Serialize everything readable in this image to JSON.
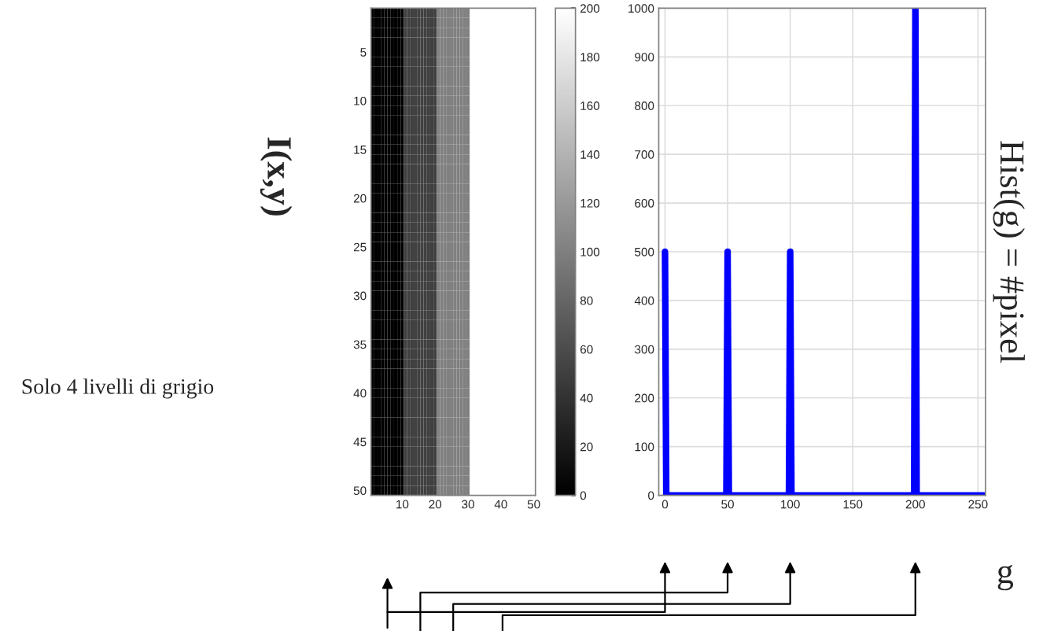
{
  "chart_data": [
    {
      "type": "heatmap",
      "ylabel": "I(x,y)",
      "annotations": [
        "Solo 4 livelli di grigio"
      ],
      "categories": [
        null,
        null,
        null,
        null,
        null,
        null,
        null,
        null,
        null,
        "10",
        null,
        null,
        null,
        null,
        null,
        null,
        null,
        null,
        null,
        "20",
        null,
        null,
        null,
        null,
        null,
        null,
        null,
        null,
        null,
        "30",
        null,
        null,
        null,
        null,
        null,
        null,
        null,
        null,
        null,
        "40",
        null,
        null,
        null,
        null,
        null,
        null,
        null,
        null,
        null,
        "50"
      ],
      "y_categories": [
        null,
        null,
        null,
        null,
        "5",
        null,
        null,
        null,
        null,
        "10",
        null,
        null,
        null,
        null,
        "15",
        null,
        null,
        null,
        null,
        "20",
        null,
        null,
        null,
        null,
        "25",
        null,
        null,
        null,
        null,
        "30",
        null,
        null,
        null,
        null,
        "35",
        null,
        null,
        null,
        null,
        "40",
        null,
        null,
        null,
        null,
        "45",
        null,
        null,
        null,
        null,
        "50"
      ],
      "clim": [
        0,
        200
      ],
      "cticks": [
        0,
        20,
        40,
        60,
        80,
        100,
        120,
        140,
        160,
        180,
        200
      ],
      "cells": [
        [
          0,
          0,
          0,
          0,
          0,
          0,
          0,
          0,
          0,
          0,
          50,
          50,
          50,
          50,
          50,
          50,
          50,
          50,
          50,
          50,
          100,
          100,
          100,
          100,
          100,
          100,
          100,
          100,
          100,
          100,
          200,
          200,
          200,
          200,
          200,
          200,
          200,
          200,
          200,
          200,
          200,
          200,
          200,
          200,
          200,
          200,
          200,
          200,
          200,
          200
        ],
        [
          0,
          0,
          0,
          0,
          0,
          0,
          0,
          0,
          0,
          0,
          50,
          50,
          50,
          50,
          50,
          50,
          50,
          50,
          50,
          50,
          100,
          100,
          100,
          100,
          100,
          100,
          100,
          100,
          100,
          100,
          200,
          200,
          200,
          200,
          200,
          200,
          200,
          200,
          200,
          200,
          200,
          200,
          200,
          200,
          200,
          200,
          200,
          200,
          200,
          200
        ],
        [
          0,
          0,
          0,
          0,
          0,
          0,
          0,
          0,
          0,
          0,
          50,
          50,
          50,
          50,
          50,
          50,
          50,
          50,
          50,
          50,
          100,
          100,
          100,
          100,
          100,
          100,
          100,
          100,
          100,
          100,
          200,
          200,
          200,
          200,
          200,
          200,
          200,
          200,
          200,
          200,
          200,
          200,
          200,
          200,
          200,
          200,
          200,
          200,
          200,
          200
        ],
        [
          0,
          0,
          0,
          0,
          0,
          0,
          0,
          0,
          0,
          0,
          50,
          50,
          50,
          50,
          50,
          50,
          50,
          50,
          50,
          50,
          100,
          100,
          100,
          100,
          100,
          100,
          100,
          100,
          100,
          100,
          200,
          200,
          200,
          200,
          200,
          200,
          200,
          200,
          200,
          200,
          200,
          200,
          200,
          200,
          200,
          200,
          200,
          200,
          200,
          200
        ],
        [
          0,
          0,
          0,
          0,
          0,
          0,
          0,
          0,
          0,
          0,
          50,
          50,
          50,
          50,
          50,
          50,
          50,
          50,
          50,
          50,
          100,
          100,
          100,
          100,
          100,
          100,
          100,
          100,
          100,
          100,
          200,
          200,
          200,
          200,
          200,
          200,
          200,
          200,
          200,
          200,
          200,
          200,
          200,
          200,
          200,
          200,
          200,
          200,
          200,
          200
        ],
        [
          0,
          0,
          0,
          0,
          0,
          0,
          0,
          0,
          0,
          0,
          50,
          50,
          50,
          50,
          50,
          50,
          50,
          50,
          50,
          50,
          100,
          100,
          100,
          100,
          100,
          100,
          100,
          100,
          100,
          100,
          200,
          200,
          200,
          200,
          200,
          200,
          200,
          200,
          200,
          200,
          200,
          200,
          200,
          200,
          200,
          200,
          200,
          200,
          200,
          200
        ],
        [
          0,
          0,
          0,
          0,
          0,
          0,
          0,
          0,
          0,
          0,
          50,
          50,
          50,
          50,
          50,
          50,
          50,
          50,
          50,
          50,
          100,
          100,
          100,
          100,
          100,
          100,
          100,
          100,
          100,
          100,
          200,
          200,
          200,
          200,
          200,
          200,
          200,
          200,
          200,
          200,
          200,
          200,
          200,
          200,
          200,
          200,
          200,
          200,
          200,
          200
        ],
        [
          0,
          0,
          0,
          0,
          0,
          0,
          0,
          0,
          0,
          0,
          50,
          50,
          50,
          50,
          50,
          50,
          50,
          50,
          50,
          50,
          100,
          100,
          100,
          100,
          100,
          100,
          100,
          100,
          100,
          100,
          200,
          200,
          200,
          200,
          200,
          200,
          200,
          200,
          200,
          200,
          200,
          200,
          200,
          200,
          200,
          200,
          200,
          200,
          200,
          200
        ],
        [
          0,
          0,
          0,
          0,
          0,
          0,
          0,
          0,
          0,
          0,
          50,
          50,
          50,
          50,
          50,
          50,
          50,
          50,
          50,
          50,
          100,
          100,
          100,
          100,
          100,
          100,
          100,
          100,
          100,
          100,
          200,
          200,
          200,
          200,
          200,
          200,
          200,
          200,
          200,
          200,
          200,
          200,
          200,
          200,
          200,
          200,
          200,
          200,
          200,
          200
        ],
        [
          0,
          0,
          0,
          0,
          0,
          0,
          0,
          0,
          0,
          0,
          50,
          50,
          50,
          50,
          50,
          50,
          50,
          50,
          50,
          50,
          100,
          100,
          100,
          100,
          100,
          100,
          100,
          100,
          100,
          100,
          200,
          200,
          200,
          200,
          200,
          200,
          200,
          200,
          200,
          200,
          200,
          200,
          200,
          200,
          200,
          200,
          200,
          200,
          200,
          200
        ],
        [
          0,
          0,
          0,
          0,
          0,
          0,
          0,
          0,
          0,
          0,
          50,
          50,
          50,
          50,
          50,
          50,
          50,
          50,
          50,
          50,
          100,
          100,
          100,
          100,
          100,
          100,
          100,
          100,
          100,
          100,
          200,
          200,
          200,
          200,
          200,
          200,
          200,
          200,
          200,
          200,
          200,
          200,
          200,
          200,
          200,
          200,
          200,
          200,
          200,
          200
        ],
        [
          0,
          0,
          0,
          0,
          0,
          0,
          0,
          0,
          0,
          0,
          50,
          50,
          50,
          50,
          50,
          50,
          50,
          50,
          50,
          50,
          100,
          100,
          100,
          100,
          100,
          100,
          100,
          100,
          100,
          100,
          200,
          200,
          200,
          200,
          200,
          200,
          200,
          200,
          200,
          200,
          200,
          200,
          200,
          200,
          200,
          200,
          200,
          200,
          200,
          200
        ],
        [
          0,
          0,
          0,
          0,
          0,
          0,
          0,
          0,
          0,
          0,
          50,
          50,
          50,
          50,
          50,
          50,
          50,
          50,
          50,
          50,
          100,
          100,
          100,
          100,
          100,
          100,
          100,
          100,
          100,
          100,
          200,
          200,
          200,
          200,
          200,
          200,
          200,
          200,
          200,
          200,
          200,
          200,
          200,
          200,
          200,
          200,
          200,
          200,
          200,
          200
        ],
        [
          0,
          0,
          0,
          0,
          0,
          0,
          0,
          0,
          0,
          0,
          50,
          50,
          50,
          50,
          50,
          50,
          50,
          50,
          50,
          50,
          100,
          100,
          100,
          100,
          100,
          100,
          100,
          100,
          100,
          100,
          200,
          200,
          200,
          200,
          200,
          200,
          200,
          200,
          200,
          200,
          200,
          200,
          200,
          200,
          200,
          200,
          200,
          200,
          200,
          200
        ],
        [
          0,
          0,
          0,
          0,
          0,
          0,
          0,
          0,
          0,
          0,
          50,
          50,
          50,
          50,
          50,
          50,
          50,
          50,
          50,
          50,
          100,
          100,
          100,
          100,
          100,
          100,
          100,
          100,
          100,
          100,
          200,
          200,
          200,
          200,
          200,
          200,
          200,
          200,
          200,
          200,
          200,
          200,
          200,
          200,
          200,
          200,
          200,
          200,
          200,
          200
        ],
        [
          0,
          0,
          0,
          0,
          0,
          0,
          0,
          0,
          0,
          0,
          50,
          50,
          50,
          50,
          50,
          50,
          50,
          50,
          50,
          50,
          100,
          100,
          100,
          100,
          100,
          100,
          100,
          100,
          100,
          100,
          200,
          200,
          200,
          200,
          200,
          200,
          200,
          200,
          200,
          200,
          200,
          200,
          200,
          200,
          200,
          200,
          200,
          200,
          200,
          200
        ],
        [
          0,
          0,
          0,
          0,
          0,
          0,
          0,
          0,
          0,
          0,
          50,
          50,
          50,
          50,
          50,
          50,
          50,
          50,
          50,
          50,
          100,
          100,
          100,
          100,
          100,
          100,
          100,
          100,
          100,
          100,
          200,
          200,
          200,
          200,
          200,
          200,
          200,
          200,
          200,
          200,
          200,
          200,
          200,
          200,
          200,
          200,
          200,
          200,
          200,
          200
        ],
        [
          0,
          0,
          0,
          0,
          0,
          0,
          0,
          0,
          0,
          0,
          50,
          50,
          50,
          50,
          50,
          50,
          50,
          50,
          50,
          50,
          100,
          100,
          100,
          100,
          100,
          100,
          100,
          100,
          100,
          100,
          200,
          200,
          200,
          200,
          200,
          200,
          200,
          200,
          200,
          200,
          200,
          200,
          200,
          200,
          200,
          200,
          200,
          200,
          200,
          200
        ],
        [
          0,
          0,
          0,
          0,
          0,
          0,
          0,
          0,
          0,
          0,
          50,
          50,
          50,
          50,
          50,
          50,
          50,
          50,
          50,
          50,
          100,
          100,
          100,
          100,
          100,
          100,
          100,
          100,
          100,
          100,
          200,
          200,
          200,
          200,
          200,
          200,
          200,
          200,
          200,
          200,
          200,
          200,
          200,
          200,
          200,
          200,
          200,
          200,
          200,
          200
        ],
        [
          0,
          0,
          0,
          0,
          0,
          0,
          0,
          0,
          0,
          0,
          50,
          50,
          50,
          50,
          50,
          50,
          50,
          50,
          50,
          50,
          100,
          100,
          100,
          100,
          100,
          100,
          100,
          100,
          100,
          100,
          200,
          200,
          200,
          200,
          200,
          200,
          200,
          200,
          200,
          200,
          200,
          200,
          200,
          200,
          200,
          200,
          200,
          200,
          200,
          200
        ],
        [
          0,
          0,
          0,
          0,
          0,
          0,
          0,
          0,
          0,
          0,
          50,
          50,
          50,
          50,
          50,
          50,
          50,
          50,
          50,
          50,
          100,
          100,
          100,
          100,
          100,
          100,
          100,
          100,
          100,
          100,
          200,
          200,
          200,
          200,
          200,
          200,
          200,
          200,
          200,
          200,
          200,
          200,
          200,
          200,
          200,
          200,
          200,
          200,
          200,
          200
        ],
        [
          0,
          0,
          0,
          0,
          0,
          0,
          0,
          0,
          0,
          0,
          50,
          50,
          50,
          50,
          50,
          50,
          50,
          50,
          50,
          50,
          100,
          100,
          100,
          100,
          100,
          100,
          100,
          100,
          100,
          100,
          200,
          200,
          200,
          200,
          200,
          200,
          200,
          200,
          200,
          200,
          200,
          200,
          200,
          200,
          200,
          200,
          200,
          200,
          200,
          200
        ],
        [
          0,
          0,
          0,
          0,
          0,
          0,
          0,
          0,
          0,
          0,
          50,
          50,
          50,
          50,
          50,
          50,
          50,
          50,
          50,
          50,
          100,
          100,
          100,
          100,
          100,
          100,
          100,
          100,
          100,
          100,
          200,
          200,
          200,
          200,
          200,
          200,
          200,
          200,
          200,
          200,
          200,
          200,
          200,
          200,
          200,
          200,
          200,
          200,
          200,
          200
        ],
        [
          0,
          0,
          0,
          0,
          0,
          0,
          0,
          0,
          0,
          0,
          50,
          50,
          50,
          50,
          50,
          50,
          50,
          50,
          50,
          50,
          100,
          100,
          100,
          100,
          100,
          100,
          100,
          100,
          100,
          100,
          200,
          200,
          200,
          200,
          200,
          200,
          200,
          200,
          200,
          200,
          200,
          200,
          200,
          200,
          200,
          200,
          200,
          200,
          200,
          200
        ],
        [
          0,
          0,
          0,
          0,
          0,
          0,
          0,
          0,
          0,
          0,
          50,
          50,
          50,
          50,
          50,
          50,
          50,
          50,
          50,
          50,
          100,
          100,
          100,
          100,
          100,
          100,
          100,
          100,
          100,
          100,
          200,
          200,
          200,
          200,
          200,
          200,
          200,
          200,
          200,
          200,
          200,
          200,
          200,
          200,
          200,
          200,
          200,
          200,
          200,
          200
        ],
        [
          0,
          0,
          0,
          0,
          0,
          0,
          0,
          0,
          0,
          0,
          50,
          50,
          50,
          50,
          50,
          50,
          50,
          50,
          50,
          50,
          100,
          100,
          100,
          100,
          100,
          100,
          100,
          100,
          100,
          100,
          200,
          200,
          200,
          200,
          200,
          200,
          200,
          200,
          200,
          200,
          200,
          200,
          200,
          200,
          200,
          200,
          200,
          200,
          200,
          200
        ],
        [
          0,
          0,
          0,
          0,
          0,
          0,
          0,
          0,
          0,
          0,
          50,
          50,
          50,
          50,
          50,
          50,
          50,
          50,
          50,
          50,
          100,
          100,
          100,
          100,
          100,
          100,
          100,
          100,
          100,
          100,
          200,
          200,
          200,
          200,
          200,
          200,
          200,
          200,
          200,
          200,
          200,
          200,
          200,
          200,
          200,
          200,
          200,
          200,
          200,
          200
        ],
        [
          0,
          0,
          0,
          0,
          0,
          0,
          0,
          0,
          0,
          0,
          50,
          50,
          50,
          50,
          50,
          50,
          50,
          50,
          50,
          50,
          100,
          100,
          100,
          100,
          100,
          100,
          100,
          100,
          100,
          100,
          200,
          200,
          200,
          200,
          200,
          200,
          200,
          200,
          200,
          200,
          200,
          200,
          200,
          200,
          200,
          200,
          200,
          200,
          200,
          200
        ],
        [
          0,
          0,
          0,
          0,
          0,
          0,
          0,
          0,
          0,
          0,
          50,
          50,
          50,
          50,
          50,
          50,
          50,
          50,
          50,
          50,
          100,
          100,
          100,
          100,
          100,
          100,
          100,
          100,
          100,
          100,
          200,
          200,
          200,
          200,
          200,
          200,
          200,
          200,
          200,
          200,
          200,
          200,
          200,
          200,
          200,
          200,
          200,
          200,
          200,
          200
        ],
        [
          0,
          0,
          0,
          0,
          0,
          0,
          0,
          0,
          0,
          0,
          50,
          50,
          50,
          50,
          50,
          50,
          50,
          50,
          50,
          50,
          100,
          100,
          100,
          100,
          100,
          100,
          100,
          100,
          100,
          100,
          200,
          200,
          200,
          200,
          200,
          200,
          200,
          200,
          200,
          200,
          200,
          200,
          200,
          200,
          200,
          200,
          200,
          200,
          200,
          200
        ],
        [
          0,
          0,
          0,
          0,
          0,
          0,
          0,
          0,
          0,
          0,
          50,
          50,
          50,
          50,
          50,
          50,
          50,
          50,
          50,
          50,
          100,
          100,
          100,
          100,
          100,
          100,
          100,
          100,
          100,
          100,
          200,
          200,
          200,
          200,
          200,
          200,
          200,
          200,
          200,
          200,
          200,
          200,
          200,
          200,
          200,
          200,
          200,
          200,
          200,
          200
        ],
        [
          0,
          0,
          0,
          0,
          0,
          0,
          0,
          0,
          0,
          0,
          50,
          50,
          50,
          50,
          50,
          50,
          50,
          50,
          50,
          50,
          100,
          100,
          100,
          100,
          100,
          100,
          100,
          100,
          100,
          100,
          200,
          200,
          200,
          200,
          200,
          200,
          200,
          200,
          200,
          200,
          200,
          200,
          200,
          200,
          200,
          200,
          200,
          200,
          200,
          200
        ],
        [
          0,
          0,
          0,
          0,
          0,
          0,
          0,
          0,
          0,
          0,
          50,
          50,
          50,
          50,
          50,
          50,
          50,
          50,
          50,
          50,
          100,
          100,
          100,
          100,
          100,
          100,
          100,
          100,
          100,
          100,
          200,
          200,
          200,
          200,
          200,
          200,
          200,
          200,
          200,
          200,
          200,
          200,
          200,
          200,
          200,
          200,
          200,
          200,
          200,
          200
        ],
        [
          0,
          0,
          0,
          0,
          0,
          0,
          0,
          0,
          0,
          0,
          50,
          50,
          50,
          50,
          50,
          50,
          50,
          50,
          50,
          50,
          100,
          100,
          100,
          100,
          100,
          100,
          100,
          100,
          100,
          100,
          200,
          200,
          200,
          200,
          200,
          200,
          200,
          200,
          200,
          200,
          200,
          200,
          200,
          200,
          200,
          200,
          200,
          200,
          200,
          200
        ],
        [
          0,
          0,
          0,
          0,
          0,
          0,
          0,
          0,
          0,
          0,
          50,
          50,
          50,
          50,
          50,
          50,
          50,
          50,
          50,
          50,
          100,
          100,
          100,
          100,
          100,
          100,
          100,
          100,
          100,
          100,
          200,
          200,
          200,
          200,
          200,
          200,
          200,
          200,
          200,
          200,
          200,
          200,
          200,
          200,
          200,
          200,
          200,
          200,
          200,
          200
        ],
        [
          0,
          0,
          0,
          0,
          0,
          0,
          0,
          0,
          0,
          0,
          50,
          50,
          50,
          50,
          50,
          50,
          50,
          50,
          50,
          50,
          100,
          100,
          100,
          100,
          100,
          100,
          100,
          100,
          100,
          100,
          200,
          200,
          200,
          200,
          200,
          200,
          200,
          200,
          200,
          200,
          200,
          200,
          200,
          200,
          200,
          200,
          200,
          200,
          200,
          200
        ],
        [
          0,
          0,
          0,
          0,
          0,
          0,
          0,
          0,
          0,
          0,
          50,
          50,
          50,
          50,
          50,
          50,
          50,
          50,
          50,
          50,
          100,
          100,
          100,
          100,
          100,
          100,
          100,
          100,
          100,
          100,
          200,
          200,
          200,
          200,
          200,
          200,
          200,
          200,
          200,
          200,
          200,
          200,
          200,
          200,
          200,
          200,
          200,
          200,
          200,
          200
        ],
        [
          0,
          0,
          0,
          0,
          0,
          0,
          0,
          0,
          0,
          0,
          50,
          50,
          50,
          50,
          50,
          50,
          50,
          50,
          50,
          50,
          100,
          100,
          100,
          100,
          100,
          100,
          100,
          100,
          100,
          100,
          200,
          200,
          200,
          200,
          200,
          200,
          200,
          200,
          200,
          200,
          200,
          200,
          200,
          200,
          200,
          200,
          200,
          200,
          200,
          200
        ],
        [
          0,
          0,
          0,
          0,
          0,
          0,
          0,
          0,
          0,
          0,
          50,
          50,
          50,
          50,
          50,
          50,
          50,
          50,
          50,
          50,
          100,
          100,
          100,
          100,
          100,
          100,
          100,
          100,
          100,
          100,
          200,
          200,
          200,
          200,
          200,
          200,
          200,
          200,
          200,
          200,
          200,
          200,
          200,
          200,
          200,
          200,
          200,
          200,
          200,
          200
        ],
        [
          0,
          0,
          0,
          0,
          0,
          0,
          0,
          0,
          0,
          0,
          50,
          50,
          50,
          50,
          50,
          50,
          50,
          50,
          50,
          50,
          100,
          100,
          100,
          100,
          100,
          100,
          100,
          100,
          100,
          100,
          200,
          200,
          200,
          200,
          200,
          200,
          200,
          200,
          200,
          200,
          200,
          200,
          200,
          200,
          200,
          200,
          200,
          200,
          200,
          200
        ],
        [
          0,
          0,
          0,
          0,
          0,
          0,
          0,
          0,
          0,
          0,
          50,
          50,
          50,
          50,
          50,
          50,
          50,
          50,
          50,
          50,
          100,
          100,
          100,
          100,
          100,
          100,
          100,
          100,
          100,
          100,
          200,
          200,
          200,
          200,
          200,
          200,
          200,
          200,
          200,
          200,
          200,
          200,
          200,
          200,
          200,
          200,
          200,
          200,
          200,
          200
        ],
        [
          0,
          0,
          0,
          0,
          0,
          0,
          0,
          0,
          0,
          0,
          50,
          50,
          50,
          50,
          50,
          50,
          50,
          50,
          50,
          50,
          100,
          100,
          100,
          100,
          100,
          100,
          100,
          100,
          100,
          100,
          200,
          200,
          200,
          200,
          200,
          200,
          200,
          200,
          200,
          200,
          200,
          200,
          200,
          200,
          200,
          200,
          200,
          200,
          200,
          200
        ],
        [
          0,
          0,
          0,
          0,
          0,
          0,
          0,
          0,
          0,
          0,
          50,
          50,
          50,
          50,
          50,
          50,
          50,
          50,
          50,
          50,
          100,
          100,
          100,
          100,
          100,
          100,
          100,
          100,
          100,
          100,
          200,
          200,
          200,
          200,
          200,
          200,
          200,
          200,
          200,
          200,
          200,
          200,
          200,
          200,
          200,
          200,
          200,
          200,
          200,
          200
        ],
        [
          0,
          0,
          0,
          0,
          0,
          0,
          0,
          0,
          0,
          0,
          50,
          50,
          50,
          50,
          50,
          50,
          50,
          50,
          50,
          50,
          100,
          100,
          100,
          100,
          100,
          100,
          100,
          100,
          100,
          100,
          200,
          200,
          200,
          200,
          200,
          200,
          200,
          200,
          200,
          200,
          200,
          200,
          200,
          200,
          200,
          200,
          200,
          200,
          200,
          200
        ],
        [
          0,
          0,
          0,
          0,
          0,
          0,
          0,
          0,
          0,
          0,
          50,
          50,
          50,
          50,
          50,
          50,
          50,
          50,
          50,
          50,
          100,
          100,
          100,
          100,
          100,
          100,
          100,
          100,
          100,
          100,
          200,
          200,
          200,
          200,
          200,
          200,
          200,
          200,
          200,
          200,
          200,
          200,
          200,
          200,
          200,
          200,
          200,
          200,
          200,
          200
        ],
        [
          0,
          0,
          0,
          0,
          0,
          0,
          0,
          0,
          0,
          0,
          50,
          50,
          50,
          50,
          50,
          50,
          50,
          50,
          50,
          50,
          100,
          100,
          100,
          100,
          100,
          100,
          100,
          100,
          100,
          100,
          200,
          200,
          200,
          200,
          200,
          200,
          200,
          200,
          200,
          200,
          200,
          200,
          200,
          200,
          200,
          200,
          200,
          200,
          200,
          200
        ],
        [
          0,
          0,
          0,
          0,
          0,
          0,
          0,
          0,
          0,
          0,
          50,
          50,
          50,
          50,
          50,
          50,
          50,
          50,
          50,
          50,
          100,
          100,
          100,
          100,
          100,
          100,
          100,
          100,
          100,
          100,
          200,
          200,
          200,
          200,
          200,
          200,
          200,
          200,
          200,
          200,
          200,
          200,
          200,
          200,
          200,
          200,
          200,
          200,
          200,
          200
        ],
        [
          0,
          0,
          0,
          0,
          0,
          0,
          0,
          0,
          0,
          0,
          50,
          50,
          50,
          50,
          50,
          50,
          50,
          50,
          50,
          50,
          100,
          100,
          100,
          100,
          100,
          100,
          100,
          100,
          100,
          100,
          200,
          200,
          200,
          200,
          200,
          200,
          200,
          200,
          200,
          200,
          200,
          200,
          200,
          200,
          200,
          200,
          200,
          200,
          200,
          200
        ],
        [
          0,
          0,
          0,
          0,
          0,
          0,
          0,
          0,
          0,
          0,
          50,
          50,
          50,
          50,
          50,
          50,
          50,
          50,
          50,
          50,
          100,
          100,
          100,
          100,
          100,
          100,
          100,
          100,
          100,
          100,
          200,
          200,
          200,
          200,
          200,
          200,
          200,
          200,
          200,
          200,
          200,
          200,
          200,
          200,
          200,
          200,
          200,
          200,
          200,
          200
        ],
        [
          0,
          0,
          0,
          0,
          0,
          0,
          0,
          0,
          0,
          0,
          50,
          50,
          50,
          50,
          50,
          50,
          50,
          50,
          50,
          50,
          100,
          100,
          100,
          100,
          100,
          100,
          100,
          100,
          100,
          100,
          200,
          200,
          200,
          200,
          200,
          200,
          200,
          200,
          200,
          200,
          200,
          200,
          200,
          200,
          200,
          200,
          200,
          200,
          200,
          200
        ]
      ]
    },
    {
      "type": "line",
      "ylabel": "Hist(g) = #pixel",
      "xlabel": "g",
      "grid": true,
      "xlim": [
        -5,
        256
      ],
      "xticks": [
        0,
        50,
        100,
        150,
        200,
        250
      ],
      "ylim": [
        0,
        1000
      ],
      "yticks": [
        0,
        100,
        200,
        300,
        400,
        500,
        600,
        700,
        800,
        900,
        1000
      ],
      "series": [
        {
          "color": "#0000ff",
          "x": [
            0,
            1,
            49,
            50,
            51,
            99,
            100,
            101,
            199,
            200,
            201,
            255
          ],
          "values": [
            500,
            0,
            0,
            500,
            0,
            0,
            500,
            0,
            0,
            1000,
            0,
            0
          ]
        }
      ]
    }
  ]
}
